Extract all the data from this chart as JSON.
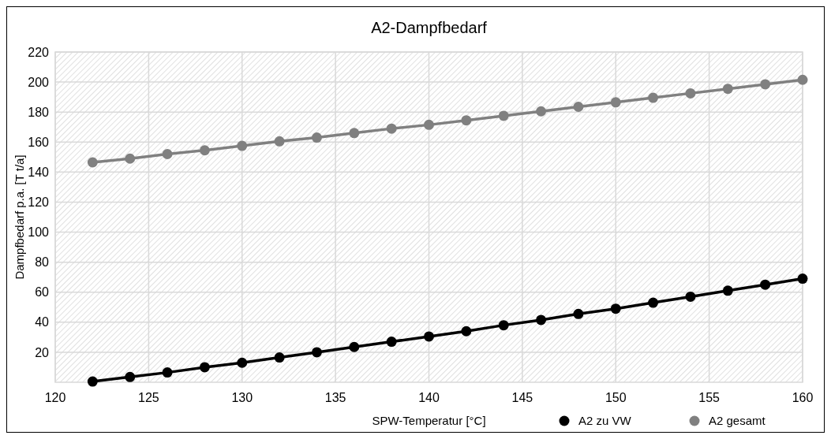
{
  "chart_data": {
    "type": "line",
    "title": "A2-Dampfbedarf",
    "xlabel": "SPW-Temperatur [°C]",
    "ylabel": "Dampfbedarf p.a. [T t/a]",
    "x": [
      122,
      124,
      126,
      128,
      130,
      132,
      134,
      136,
      138,
      140,
      142,
      144,
      146,
      148,
      150,
      152,
      154,
      156,
      158,
      160
    ],
    "series": [
      {
        "name": "A2 zu VW",
        "color": "#000000",
        "values": [
          0.5,
          3.5,
          6.5,
          10,
          13,
          16.5,
          20,
          23.5,
          27,
          30.5,
          34,
          38,
          41.5,
          45.5,
          49,
          53,
          57,
          61,
          65,
          69
        ]
      },
      {
        "name": "A2 gesamt",
        "color": "#808080",
        "values": [
          146.5,
          149,
          152,
          154.5,
          157.5,
          160.5,
          163,
          166,
          169,
          171.5,
          174.5,
          177.5,
          180.5,
          183.5,
          186.5,
          189.5,
          192.5,
          195.5,
          198.5,
          201.5
        ]
      }
    ],
    "xlim": [
      120,
      160
    ],
    "xticks": [
      120,
      125,
      130,
      135,
      140,
      145,
      150,
      155,
      160
    ],
    "ylim": [
      0,
      220
    ],
    "yticks": [
      20,
      40,
      60,
      80,
      100,
      120,
      140,
      160,
      180,
      200,
      220
    ],
    "grid": true,
    "legend": "bottom right",
    "marker": "circle",
    "line_style": "solid"
  }
}
